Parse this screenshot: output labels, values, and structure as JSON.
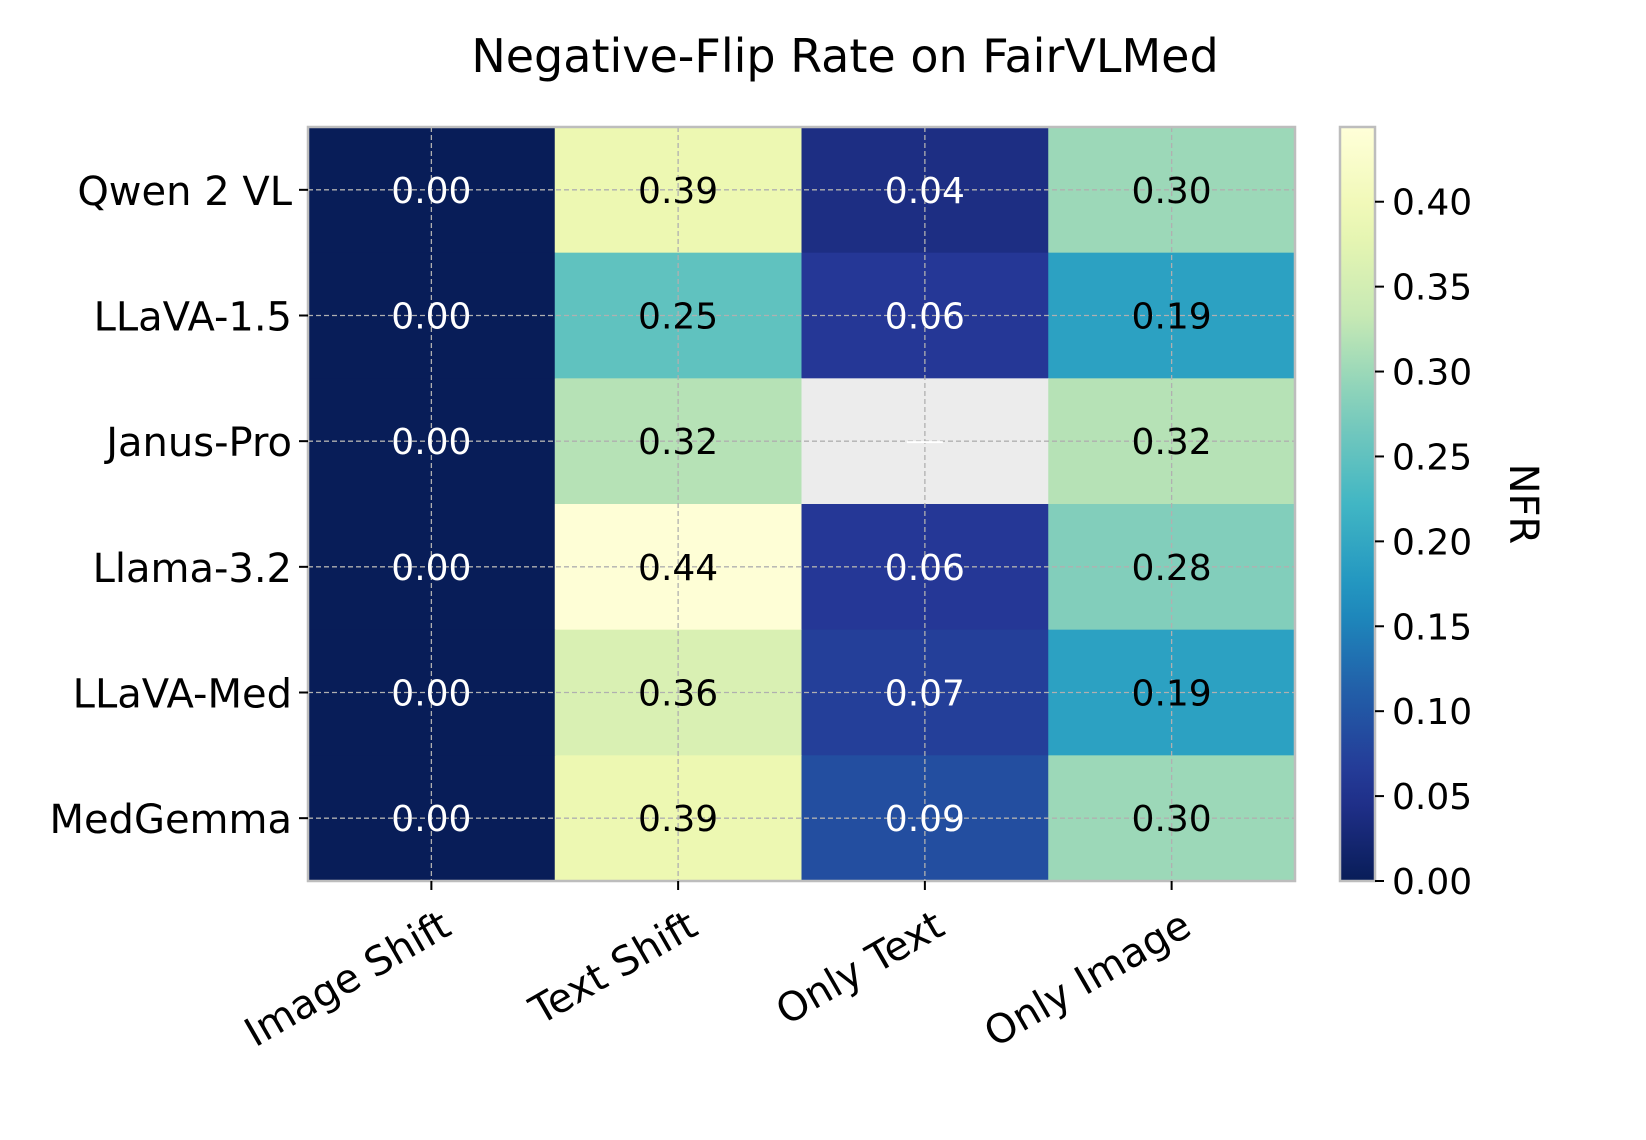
{
  "chart_data": {
    "type": "heatmap",
    "title": "Negative-Flip Rate on FairVLMed",
    "xlabel": "",
    "ylabel": "",
    "columns": [
      "Image Shift",
      "Text Shift",
      "Only Text",
      "Only Image"
    ],
    "rows": [
      "Qwen 2 VL",
      "LLaVA-1.5",
      "Janus-Pro",
      "Llama-3.2",
      "LLaVA-Med",
      "MedGemma"
    ],
    "values": [
      [
        0.0,
        0.39,
        0.04,
        0.3
      ],
      [
        0.0,
        0.25,
        0.06,
        0.19
      ],
      [
        0.0,
        0.32,
        null,
        0.32
      ],
      [
        0.0,
        0.44,
        0.06,
        0.28
      ],
      [
        0.0,
        0.36,
        0.07,
        0.19
      ],
      [
        0.0,
        0.39,
        0.09,
        0.3
      ]
    ],
    "cell_labels": [
      [
        "0.00",
        "0.39",
        "0.04",
        "0.30"
      ],
      [
        "0.00",
        "0.25",
        "0.06",
        "0.19"
      ],
      [
        "0.00",
        "0.32",
        "",
        "0.32"
      ],
      [
        "0.00",
        "0.44",
        "0.06",
        "0.28"
      ],
      [
        "0.00",
        "0.36",
        "0.07",
        "0.19"
      ],
      [
        "0.00",
        "0.39",
        "0.09",
        "0.30"
      ]
    ],
    "missing_cell_color": "#ececec",
    "colormap": "YlGnBu",
    "colorbar": {
      "label": "NFR",
      "range": [
        0.0,
        0.444
      ],
      "ticks": [
        0.0,
        0.05,
        0.1,
        0.15,
        0.2,
        0.25,
        0.3,
        0.35,
        0.4
      ],
      "tick_labels": [
        "0.00",
        "0.05",
        "0.10",
        "0.15",
        "0.20",
        "0.25",
        "0.30",
        "0.35",
        "0.40"
      ]
    },
    "grid": true,
    "legend": "none"
  }
}
